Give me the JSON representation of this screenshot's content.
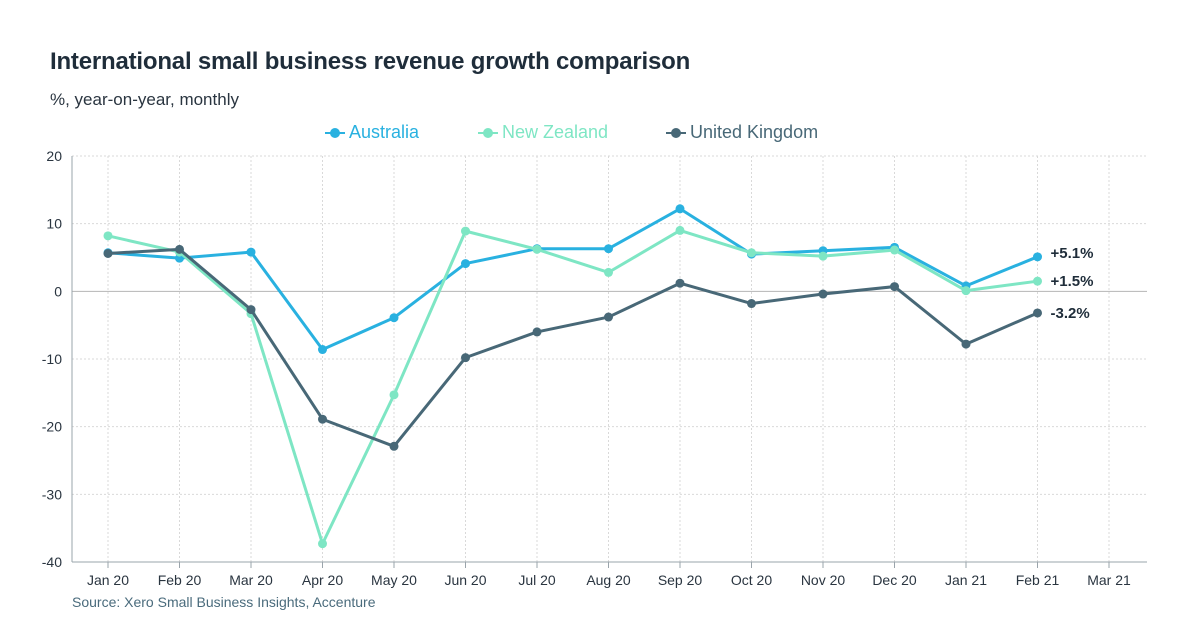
{
  "title": "International small business revenue growth comparison",
  "subtitle": "%, year-on-year, monthly",
  "source": "Source: Xero Small Business Insights, Accenture",
  "chart_data": {
    "type": "line",
    "title": "International small business revenue growth comparison",
    "subtitle": "%, year-on-year, monthly",
    "xlabel": "",
    "ylabel": "",
    "categories": [
      "Jan 20",
      "Feb 20",
      "Mar 20",
      "Apr 20",
      "May 20",
      "Jun 20",
      "Jul 20",
      "Aug 20",
      "Sep 20",
      "Oct 20",
      "Nov 20",
      "Dec 20",
      "Jan 21",
      "Feb 21",
      "Mar 21"
    ],
    "ylim": [
      -40,
      20
    ],
    "yticks": [
      20,
      10,
      0,
      -10,
      -20,
      -30,
      -40
    ],
    "grid": true,
    "legend": "top-center",
    "series": [
      {
        "name": "Australia",
        "color": "#29b1e0",
        "values": [
          5.7,
          4.9,
          5.8,
          -8.6,
          -3.9,
          4.1,
          6.3,
          6.3,
          12.2,
          5.5,
          6.0,
          6.5,
          0.8,
          5.1,
          null
        ],
        "end_label": "+5.1%"
      },
      {
        "name": "New Zealand",
        "color": "#7ee6c4",
        "values": [
          8.2,
          5.8,
          -3.3,
          -37.3,
          -15.3,
          8.9,
          6.2,
          2.8,
          9.0,
          5.7,
          5.2,
          6.1,
          0.1,
          1.5,
          null
        ],
        "end_label": "+1.5%"
      },
      {
        "name": "United Kingdom",
        "color": "#486877",
        "values": [
          5.6,
          6.2,
          -2.7,
          -18.9,
          -22.9,
          -9.8,
          -6.0,
          -3.8,
          1.2,
          -1.8,
          -0.4,
          0.7,
          -7.8,
          -3.2,
          null
        ],
        "end_label": "-3.2%"
      }
    ]
  }
}
